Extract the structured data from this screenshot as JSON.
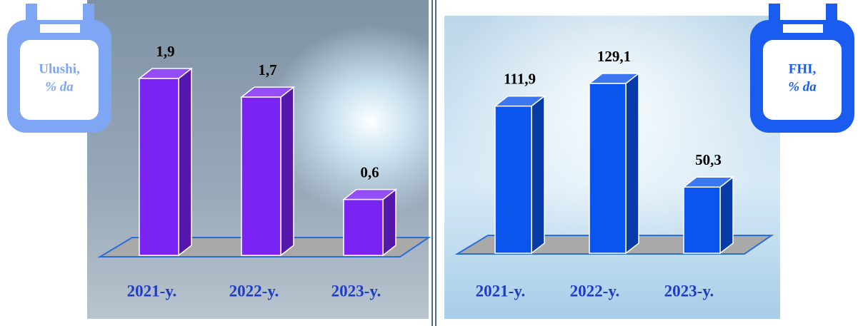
{
  "chart_data": [
    {
      "type": "bar",
      "title": "Ulushi,",
      "subtitle": "% da",
      "categories": [
        "2021-y.",
        "2022-y.",
        "2023-y."
      ],
      "values": [
        1.9,
        1.7,
        0.6
      ],
      "value_labels": [
        "1,9",
        "1,7",
        "0,6"
      ],
      "color": "#7b22f5"
    },
    {
      "type": "bar",
      "title": "FHI,",
      "subtitle": "% da",
      "categories": [
        "2021-y.",
        "2022-y.",
        "2023-y."
      ],
      "values": [
        111.9,
        129.1,
        50.3
      ],
      "value_labels": [
        "111,9",
        "129,1",
        "50,3"
      ],
      "color": "#0a55ee"
    }
  ]
}
